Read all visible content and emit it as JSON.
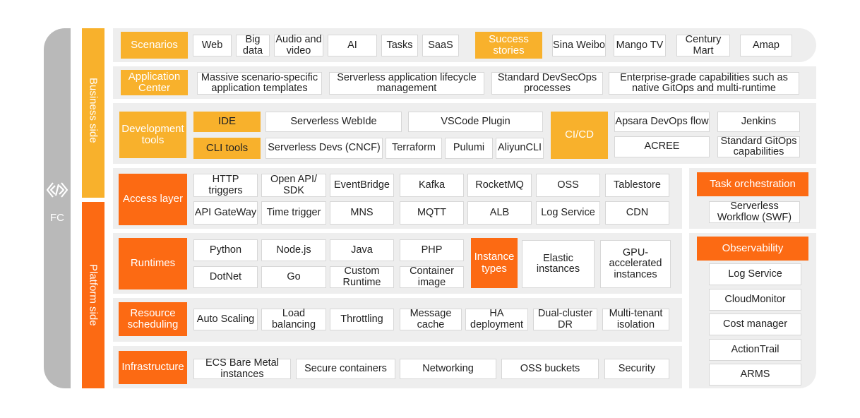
{
  "fc": {
    "label": "FC",
    "icon": "fc-logo-icon"
  },
  "sides": {
    "business": "Business side",
    "platform": "Platform side"
  },
  "scenarios": {
    "label": "Scenarios",
    "items": [
      "Web",
      "Big data",
      "Audio and video",
      "AI",
      "Tasks",
      "SaaS"
    ],
    "success_label": "Success stories",
    "success_items": [
      "Sina Weibo",
      "Mango TV",
      "Century Mart",
      "Amap"
    ]
  },
  "app_center": {
    "label": "Application Center",
    "items": [
      "Massive scenario-specific application templates",
      "Serverless application lifecycle management",
      "Standard DevSecOps processes",
      "Enterprise-grade capabilities such as native GitOps and multi-runtime"
    ]
  },
  "dev_tools": {
    "label": "Development tools",
    "ide_label": "IDE",
    "ide_items": [
      "Serverless WebIde",
      "VSCode Plugin"
    ],
    "cli_label": "CLI tools",
    "cli_items": [
      "Serverless Devs (CNCF)",
      "Terraform",
      "Pulumi",
      "AliyunCLI"
    ],
    "cicd_label": "CI/CD",
    "cicd_items": [
      "Apsara DevOps flow",
      "Jenkins",
      "ACREE",
      "Standard GitOps capabilities"
    ]
  },
  "access": {
    "label": "Access layer",
    "row1": [
      "HTTP triggers",
      "Open API/ SDK",
      "EventBridge",
      "Kafka",
      "RocketMQ",
      "OSS",
      "Tablestore"
    ],
    "row2": [
      "API GateWay",
      "Time trigger",
      "MNS",
      "MQTT",
      "ALB",
      "Log Service",
      "CDN"
    ]
  },
  "task_orch": {
    "label": "Task orchestration",
    "item": "Serverless Workflow (SWF)"
  },
  "runtimes": {
    "label": "Runtimes",
    "row1": [
      "Python",
      "Node.js",
      "Java",
      "PHP"
    ],
    "row2": [
      "DotNet",
      "Go",
      "Custom Runtime",
      "Container image"
    ],
    "instance_label": "Instance types",
    "instance_items": [
      "Elastic instances",
      "GPU-accelerated instances"
    ]
  },
  "observability": {
    "label": "Observability",
    "items": [
      "Log Service",
      "CloudMonitor",
      "Cost manager",
      "ActionTrail",
      "ARMS"
    ]
  },
  "scheduling": {
    "label": "Resource scheduling",
    "items": [
      "Auto Scaling",
      "Load balancing",
      "Throttling",
      "Message cache",
      "HA deployment",
      "Dual-cluster DR",
      "Multi-tenant isolation"
    ]
  },
  "infra": {
    "label": "Infrastructure",
    "items": [
      "ECS Bare Metal instances",
      "Secure containers",
      "Networking",
      "OSS buckets",
      "Security"
    ]
  }
}
